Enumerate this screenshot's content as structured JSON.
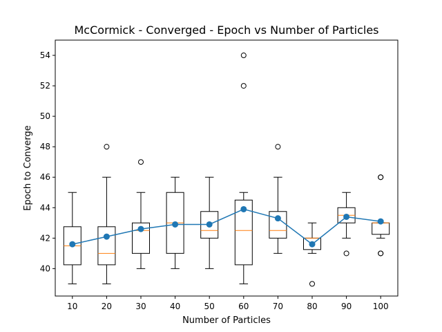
{
  "chart_data": {
    "type": "box",
    "title": "McCormick - Converged - Epoch vs Number of Particles",
    "xlabel": "Number of Particles",
    "ylabel": "Epoch to Converge",
    "categories": [
      "10",
      "20",
      "30",
      "40",
      "50",
      "60",
      "70",
      "80",
      "90",
      "100"
    ],
    "ylim": [
      38.2,
      55.0
    ],
    "yticks": [
      40,
      42,
      44,
      46,
      48,
      50,
      52,
      54
    ],
    "grid": false,
    "boxes": [
      {
        "category": "10",
        "whisker_low": 39,
        "q1": 40.25,
        "median": 41.5,
        "q3": 42.75,
        "whisker_high": 45,
        "outliers": []
      },
      {
        "category": "20",
        "whisker_low": 39,
        "q1": 40.25,
        "median": 41,
        "q3": 42.75,
        "whisker_high": 46,
        "outliers": [
          48
        ]
      },
      {
        "category": "30",
        "whisker_low": 40,
        "q1": 41,
        "median": 42.5,
        "q3": 43,
        "whisker_high": 45,
        "outliers": [
          47
        ]
      },
      {
        "category": "40",
        "whisker_low": 40,
        "q1": 41,
        "median": 43,
        "q3": 45,
        "whisker_high": 46,
        "outliers": []
      },
      {
        "category": "50",
        "whisker_low": 40,
        "q1": 42,
        "median": 42.5,
        "q3": 43.75,
        "whisker_high": 46,
        "outliers": []
      },
      {
        "category": "60",
        "whisker_low": 39,
        "q1": 40.25,
        "median": 42.5,
        "q3": 44.5,
        "whisker_high": 45,
        "outliers": [
          52,
          54
        ]
      },
      {
        "category": "70",
        "whisker_low": 41,
        "q1": 42,
        "median": 42.5,
        "q3": 43.75,
        "whisker_high": 46,
        "outliers": [
          48
        ]
      },
      {
        "category": "80",
        "whisker_low": 41,
        "q1": 41.25,
        "median": 42,
        "q3": 42,
        "whisker_high": 43,
        "outliers": [
          39
        ]
      },
      {
        "category": "90",
        "whisker_low": 42,
        "q1": 43,
        "median": 43.5,
        "q3": 44,
        "whisker_high": 45,
        "outliers": [
          41
        ]
      },
      {
        "category": "100",
        "whisker_low": 42,
        "q1": 42.25,
        "median": 43,
        "q3": 43,
        "whisker_high": 43,
        "outliers": [
          41,
          41,
          46,
          46
        ]
      }
    ],
    "mean_series": {
      "values": [
        41.6,
        42.1,
        42.6,
        42.9,
        42.9,
        43.9,
        43.3,
        41.6,
        43.4,
        43.1
      ],
      "color": "#1f77b4"
    },
    "colors": {
      "box_edge": "#000000",
      "median": "#ff7f0e",
      "mean": "#1f77b4"
    }
  }
}
